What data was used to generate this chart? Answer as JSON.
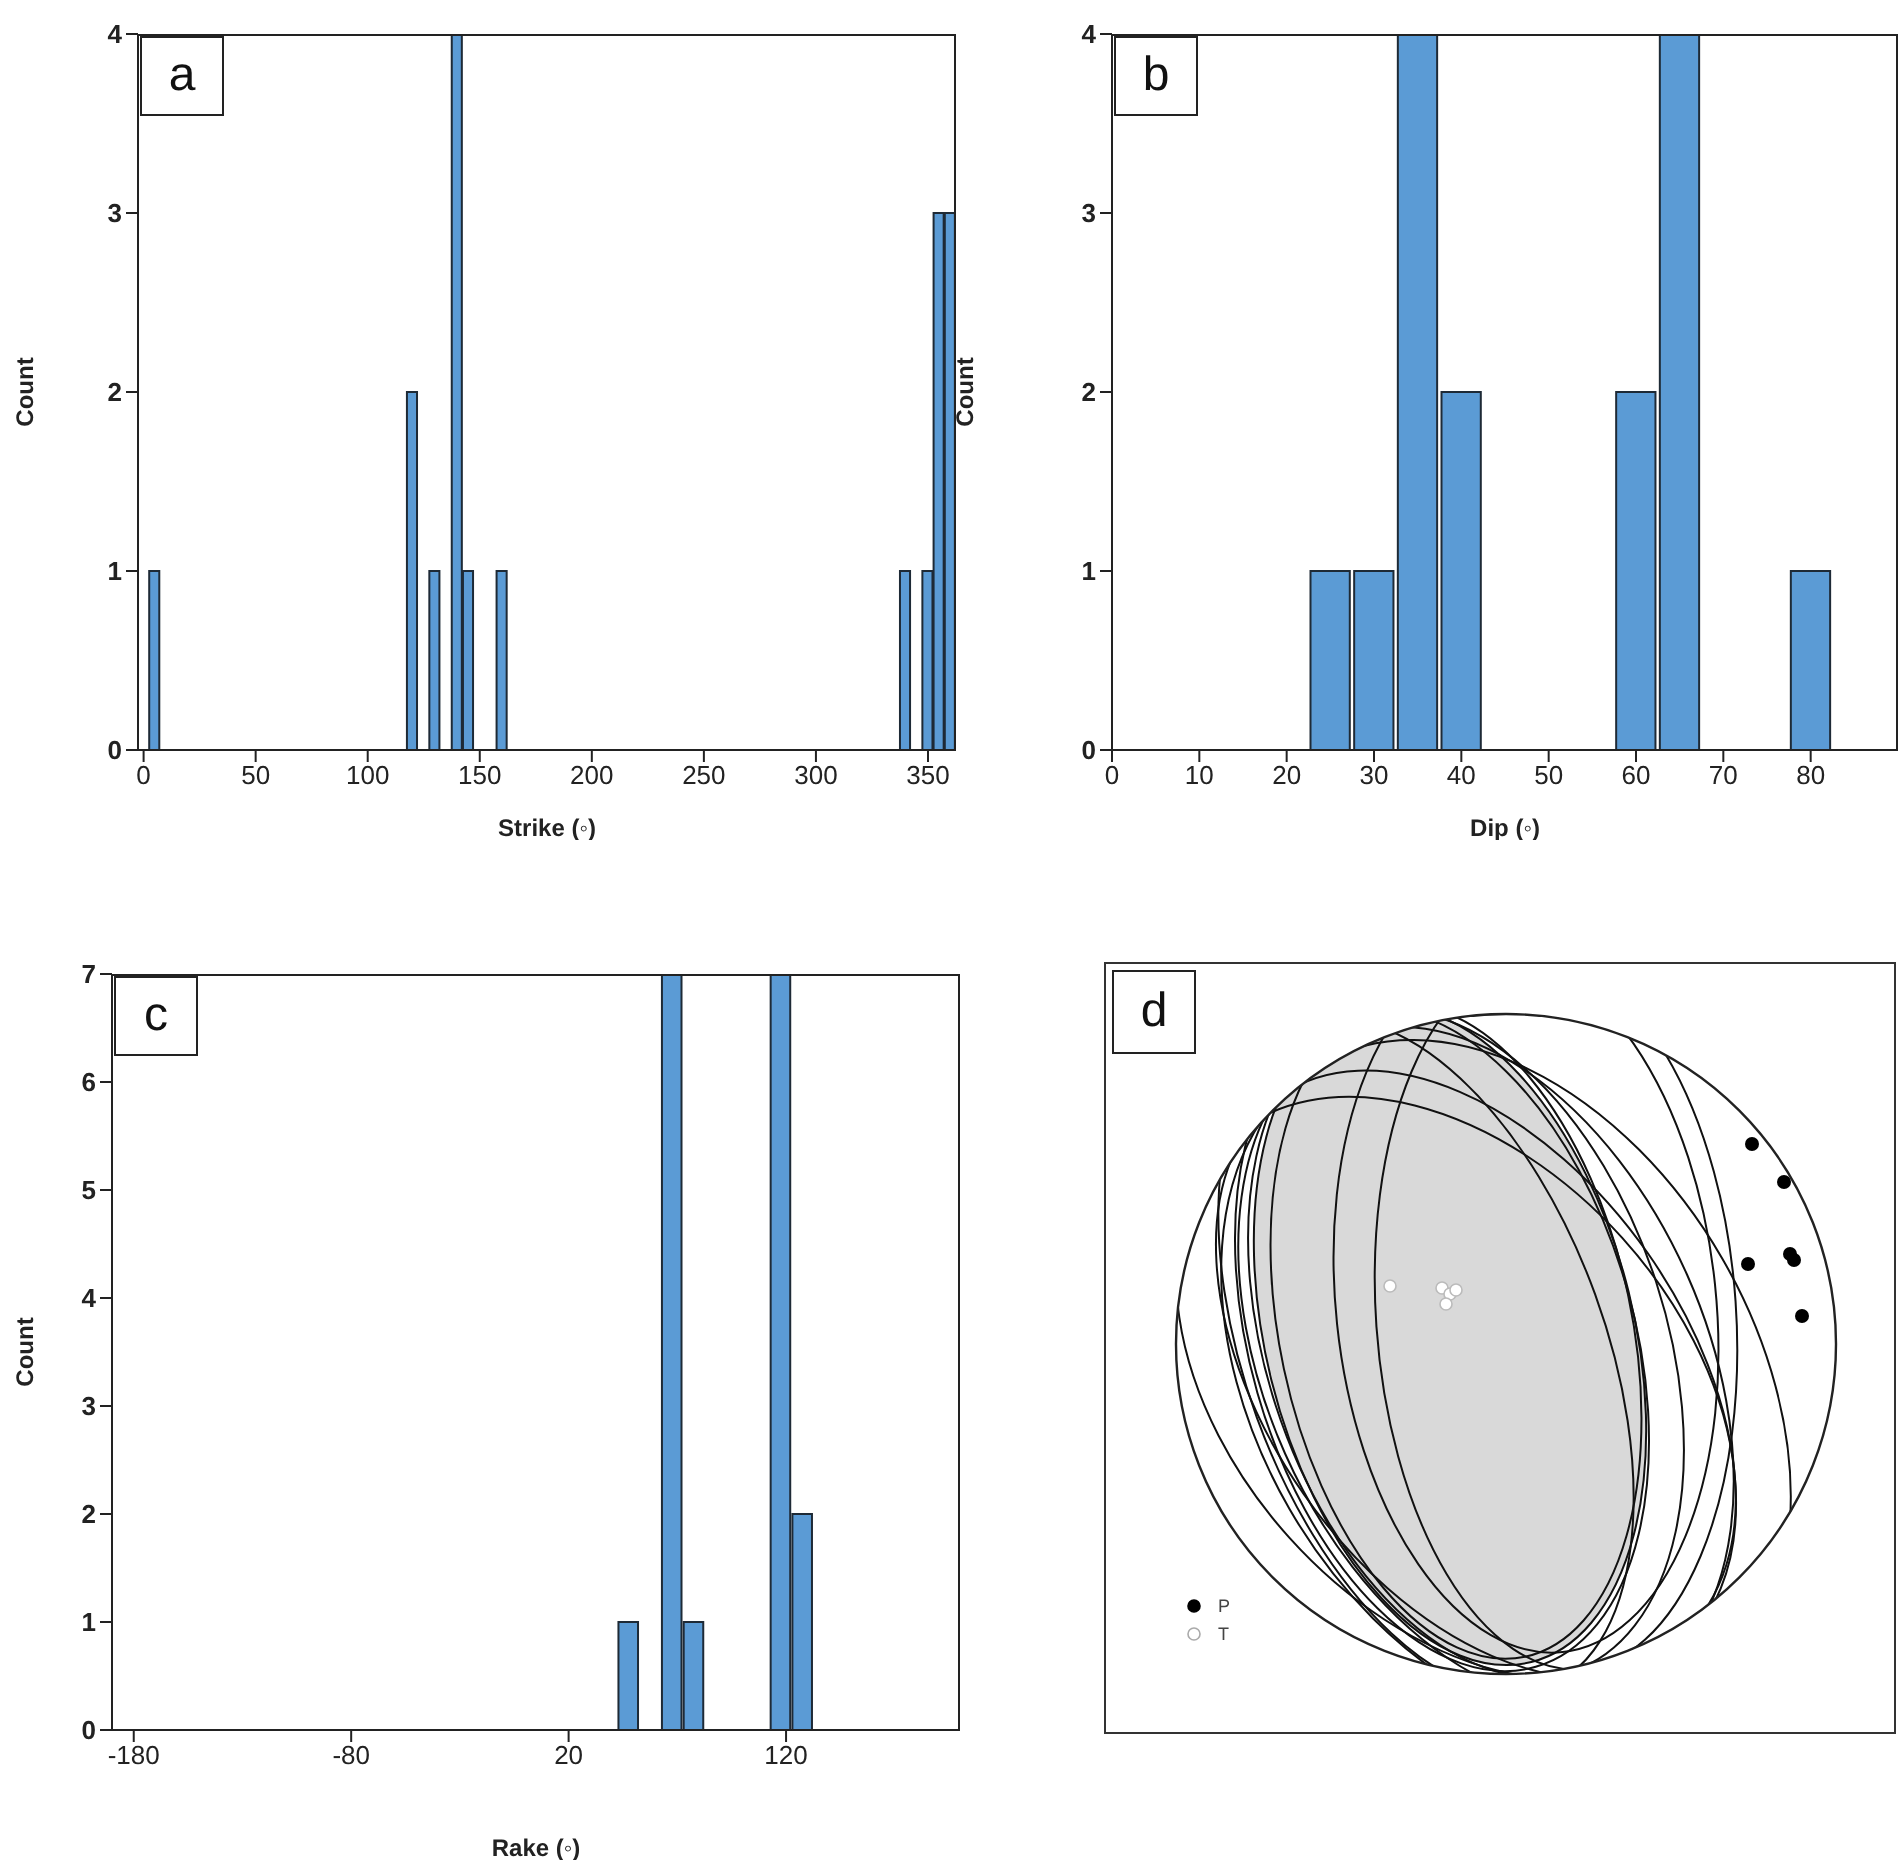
{
  "chart_data": [
    {
      "type": "histogram",
      "xlabel": "Strike (◦)",
      "ylabel": "Count",
      "annotations": [
        "a"
      ],
      "color": "#5b9bd5",
      "bins": [
        2.5,
        7.5,
        12.5,
        17.5,
        22.5,
        27.5,
        32.5,
        37.5,
        42.5,
        47.5,
        52.5,
        57.5,
        62.5,
        67.5,
        72.5,
        77.5,
        82.5,
        87.5,
        92.5,
        97.5,
        102.5,
        107.5,
        112.5,
        117.5,
        122.5,
        127.5,
        132.5,
        137.5,
        142.5,
        147.5,
        152.5,
        157.5,
        162.5,
        167.5,
        172.5,
        177.5,
        182.5,
        187.5,
        192.5,
        197.5,
        202.5,
        207.5,
        212.5,
        217.5,
        222.5,
        227.5,
        232.5,
        237.5,
        242.5,
        247.5,
        252.5,
        257.5,
        262.5,
        267.5,
        272.5,
        277.5,
        282.5,
        287.5,
        292.5,
        297.5,
        302.5,
        307.5,
        312.5,
        317.5,
        322.5,
        327.5,
        332.5,
        337.5,
        342.5,
        347.5,
        352.5,
        357.5,
        362.5
      ],
      "values": [
        1,
        0,
        0,
        0,
        0,
        0,
        0,
        0,
        0,
        0,
        0,
        0,
        0,
        0,
        0,
        0,
        0,
        0,
        0,
        0,
        0,
        0,
        0,
        2,
        0,
        1,
        0,
        4,
        1,
        0,
        0,
        1,
        0,
        0,
        0,
        0,
        0,
        0,
        0,
        0,
        0,
        0,
        0,
        0,
        0,
        0,
        0,
        0,
        0,
        0,
        0,
        0,
        0,
        0,
        0,
        0,
        0,
        0,
        0,
        0,
        0,
        0,
        0,
        0,
        0,
        0,
        0,
        1,
        0,
        1,
        3,
        3
      ],
      "xlim": [
        -2.5,
        362.5
      ],
      "xticks": [
        0,
        50,
        100,
        150,
        200,
        250,
        300,
        350
      ],
      "ylim": [
        0,
        4
      ],
      "yticks": [
        0,
        1,
        2,
        3,
        4
      ]
    },
    {
      "type": "histogram",
      "xlabel": "Dip (◦)",
      "ylabel": "Count",
      "annotations": [
        "b"
      ],
      "color": "#5b9bd5",
      "bins": [
        22.5,
        27.5,
        32.5,
        37.5,
        42.5,
        47.5,
        52.5,
        57.5,
        62.5,
        67.5,
        72.5,
        77.5,
        82.5
      ],
      "values": [
        1,
        1,
        4,
        2,
        0,
        0,
        0,
        2,
        4,
        0,
        0,
        1
      ],
      "xlim": [
        0,
        90
      ],
      "xticks": [
        0,
        10,
        20,
        30,
        40,
        50,
        60,
        70,
        80
      ],
      "ylim": [
        0,
        4
      ],
      "yticks": [
        0,
        1,
        2,
        3,
        4
      ]
    },
    {
      "type": "histogram",
      "xlabel": "Rake (◦)",
      "ylabel": "Count",
      "annotations": [
        "c"
      ],
      "color": "#5b9bd5",
      "bins": [
        42,
        52,
        62,
        72,
        82,
        92,
        102,
        112,
        122,
        132
      ],
      "values": [
        1,
        0,
        7,
        1,
        0,
        0,
        0,
        7,
        2
      ],
      "xlim": [
        -190,
        200
      ],
      "xticks": [
        -180,
        -80,
        20,
        120
      ],
      "ylim": [
        0,
        7
      ],
      "yticks": [
        0,
        1,
        2,
        3,
        4,
        5,
        6,
        7
      ]
    },
    {
      "type": "other",
      "annotations": [
        "d",
        "P",
        "T"
      ]
    }
  ]
}
